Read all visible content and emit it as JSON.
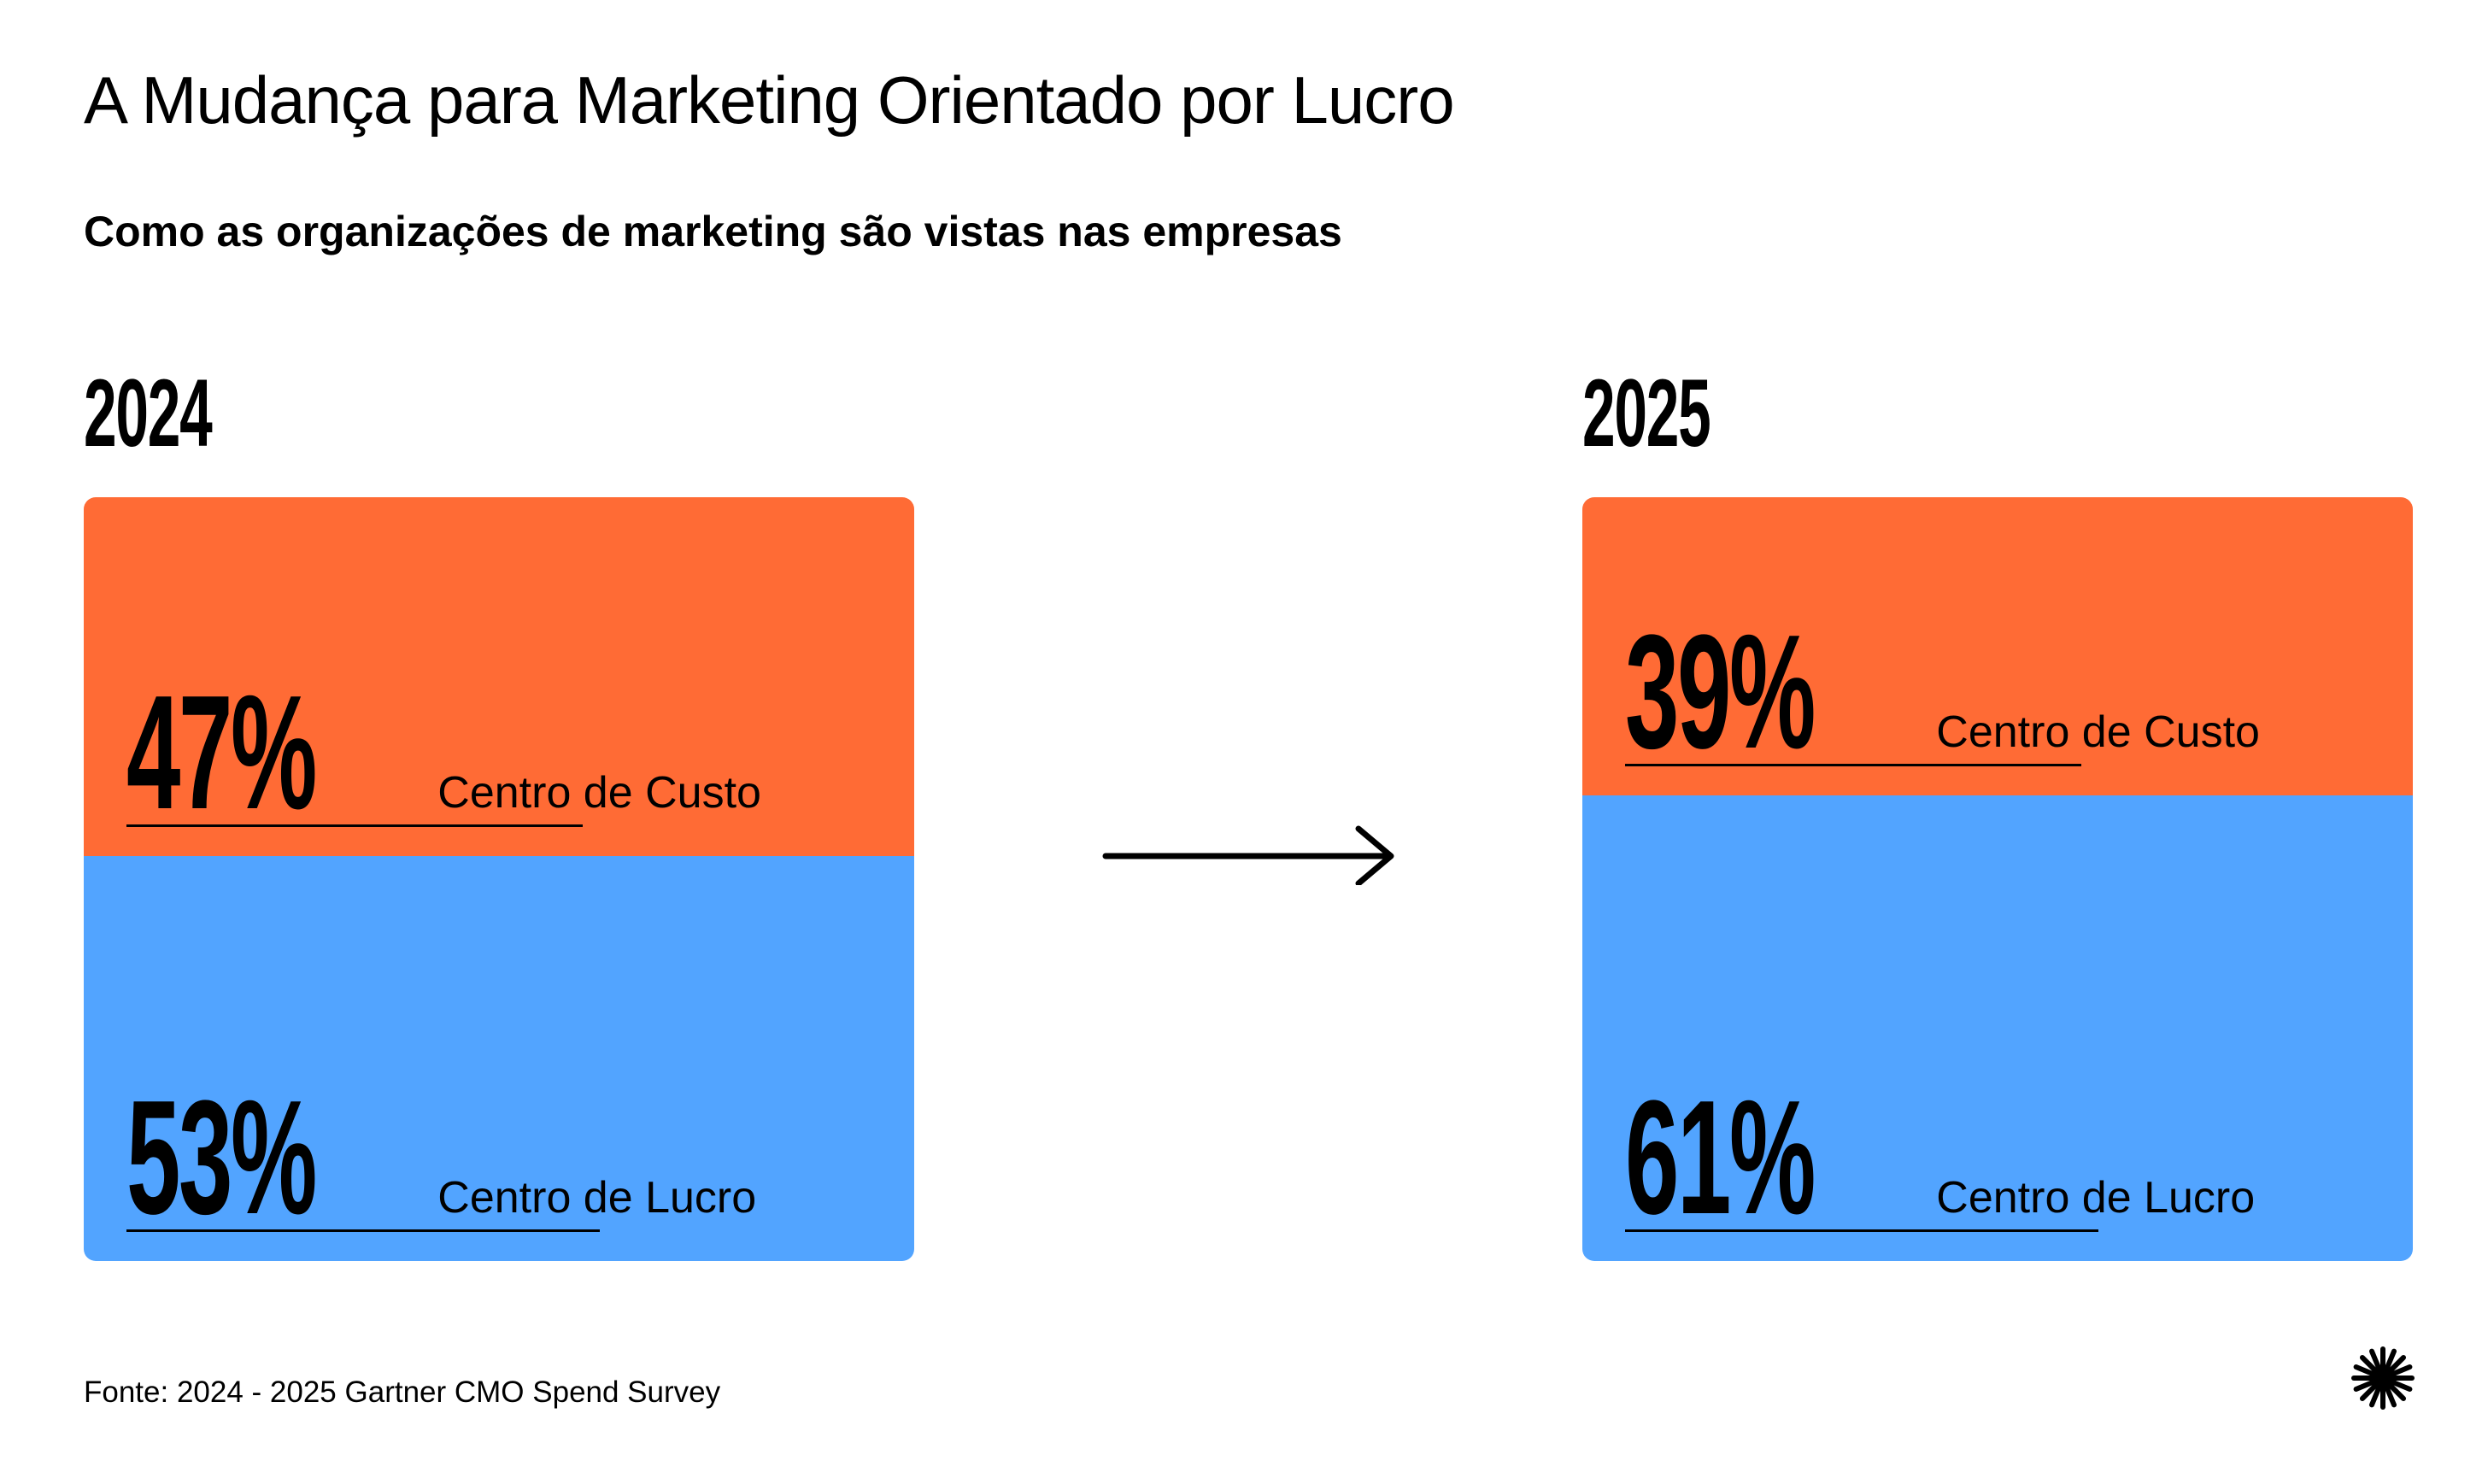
{
  "title": "A Mudança para Marketing Orientado por Lucro",
  "subtitle": "Como as organizações de marketing são vistas nas empresas",
  "source": "Fonte: 2024 - 2025 Gartner CMO Spend Survey",
  "colors": {
    "cost": "#ff6b35",
    "profit": "#52a4ff",
    "text": "#000000"
  },
  "icons": [
    "right-arrow-icon",
    "burst-logo-icon"
  ],
  "chart_data": [
    {
      "type": "bar",
      "stacked": true,
      "title": "2024",
      "series": [
        {
          "name": "Centro de Custo",
          "value": 47,
          "label": "47%",
          "color": "#ff6b35"
        },
        {
          "name": "Centro de Lucro",
          "value": 53,
          "label": "53%",
          "color": "#52a4ff"
        }
      ],
      "unit": "%"
    },
    {
      "type": "bar",
      "stacked": true,
      "title": "2025",
      "series": [
        {
          "name": "Centro de Custo",
          "value": 39,
          "label": "39%",
          "color": "#ff6b35"
        },
        {
          "name": "Centro de Lucro",
          "value": 61,
          "label": "61%",
          "color": "#52a4ff"
        }
      ],
      "unit": "%"
    }
  ]
}
